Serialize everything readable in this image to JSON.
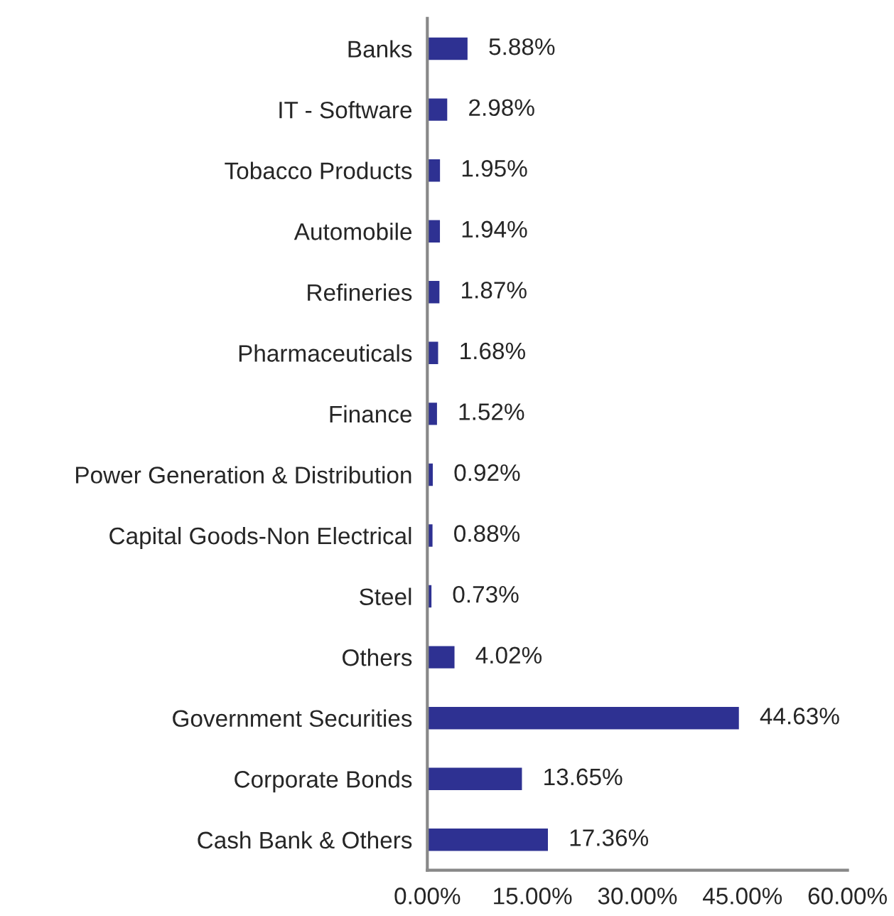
{
  "chart_data": {
    "type": "bar",
    "orientation": "horizontal",
    "categories": [
      "Banks",
      "IT - Software",
      "Tobacco Products",
      "Automobile",
      "Refineries",
      "Pharmaceuticals",
      "Finance",
      "Power Generation & Distribution",
      "Capital Goods-Non Electrical",
      "Steel",
      "Others",
      "Government Securities",
      "Corporate Bonds",
      "Cash Bank & Others"
    ],
    "values": [
      5.88,
      2.98,
      1.95,
      1.94,
      1.87,
      1.68,
      1.52,
      0.92,
      0.88,
      0.73,
      4.02,
      44.63,
      13.65,
      17.36
    ],
    "value_labels": [
      "5.88%",
      "2.98%",
      "1.95%",
      "1.94%",
      "1.87%",
      "1.68%",
      "1.52%",
      "0.92%",
      "0.88%",
      "0.73%",
      "4.02%",
      "44.63%",
      "13.65%",
      "17.36%"
    ],
    "color": "#2e3192",
    "xlim": [
      0,
      60
    ],
    "xticks": [
      {
        "value": 0,
        "label": "0.00%"
      },
      {
        "value": 15,
        "label": "15.00%"
      },
      {
        "value": 30,
        "label": "30.00%"
      },
      {
        "value": 45,
        "label": "45.00%"
      },
      {
        "value": 60,
        "label": "60.00%"
      }
    ],
    "grid": false,
    "legend": false
  }
}
